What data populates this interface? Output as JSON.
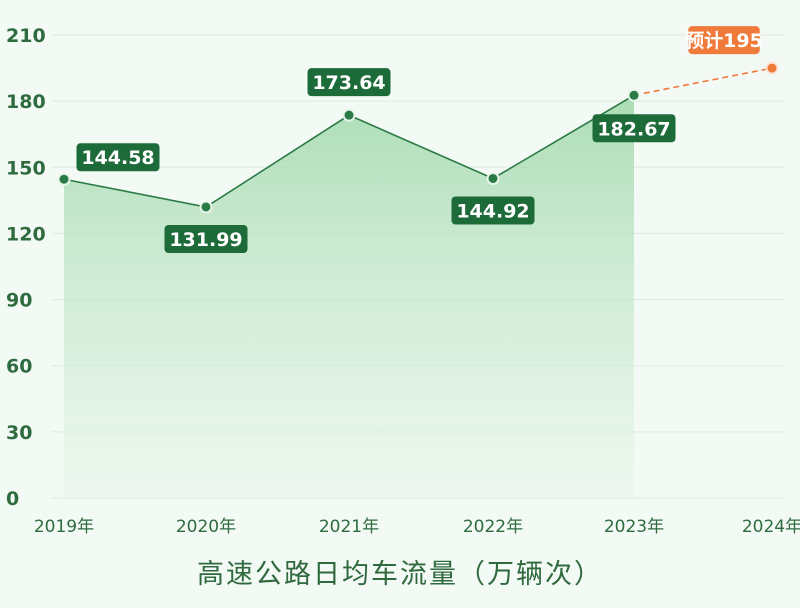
{
  "chart_data": {
    "type": "line",
    "xlabel": "高速公路日均车流量（万辆次）",
    "ylabel": "",
    "ylim": [
      0,
      210
    ],
    "yticks": [
      0,
      30,
      60,
      90,
      120,
      150,
      180,
      210
    ],
    "categories": [
      "2019年",
      "2020年",
      "2021年",
      "2022年",
      "2023年",
      "2024年"
    ],
    "series": [
      {
        "values": [
          144.58,
          131.99,
          173.64,
          144.92,
          182.67,
          null
        ],
        "labels": [
          "144.58",
          "131.99",
          "173.64",
          "144.92",
          "182.67",
          null
        ],
        "style": "solid-area",
        "color": "#2a7a45"
      },
      {
        "values": [
          null,
          null,
          null,
          null,
          182.67,
          195
        ],
        "labels": [
          null,
          null,
          null,
          null,
          null,
          "预计195"
        ],
        "style": "dashed",
        "color": "#f07a3a"
      }
    ],
    "grid": true,
    "legend": "none"
  }
}
